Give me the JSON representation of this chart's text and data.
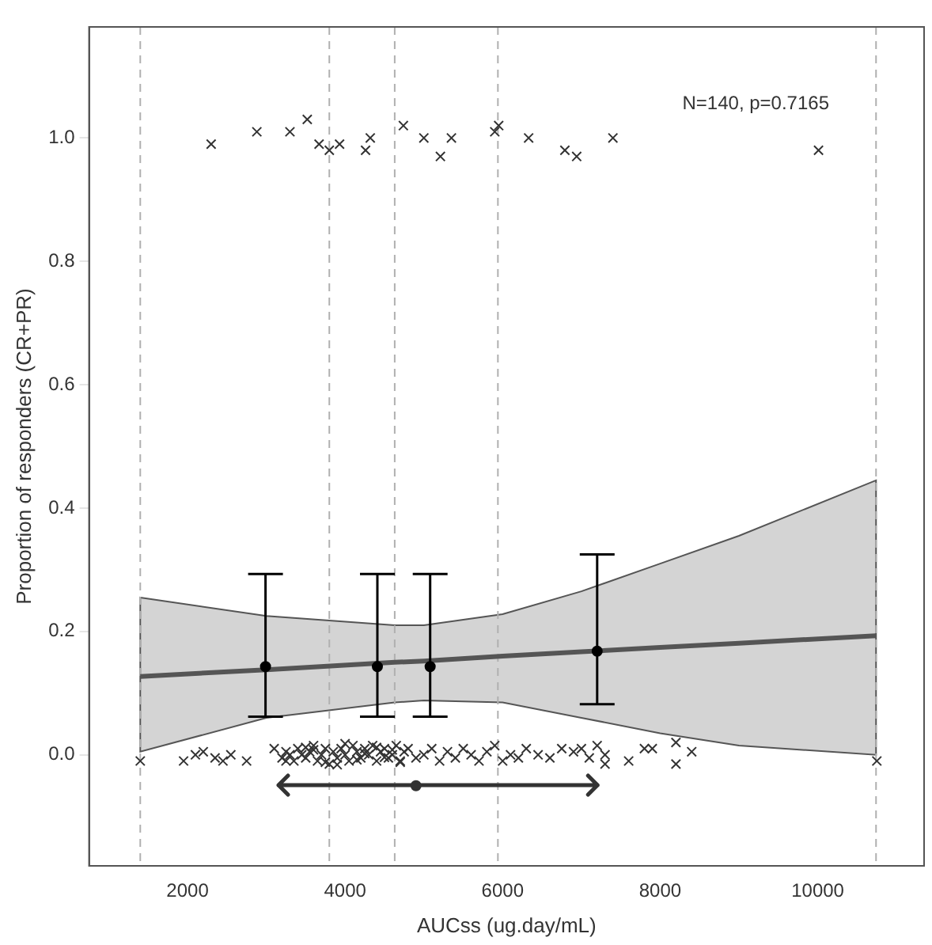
{
  "chart_data": {
    "type": "scatter",
    "xlabel": "AUCss (ug.day/mL)",
    "ylabel": "Proportion of responders (CR+PR)",
    "annotations": [
      "N=140, p=0.7165"
    ],
    "xlim": [
      750,
      11350
    ],
    "xticks": [
      2000,
      4000,
      6000,
      8000,
      10000
    ],
    "ylim": [
      -0.18,
      1.18
    ],
    "yticks": [
      {
        "value": 0,
        "label": "0.0"
      },
      {
        "value": 0.2,
        "label": "0.2"
      },
      {
        "value": 0.4,
        "label": "0.4"
      },
      {
        "value": 0.6,
        "label": "0.6"
      },
      {
        "value": 0.8,
        "label": "0.8"
      },
      {
        "value": 1,
        "label": "1.0"
      }
    ],
    "grid": false,
    "legend": false,
    "ref_lines": [
      {
        "axis": "x",
        "value": 1400,
        "color": "#b0b0b0",
        "line_style": "dashed"
      },
      {
        "axis": "x",
        "value": 3800,
        "color": "#b0b0b0",
        "line_style": "dashed"
      },
      {
        "axis": "x",
        "value": 4630,
        "color": "#b0b0b0",
        "line_style": "dashed"
      },
      {
        "axis": "x",
        "value": 5940,
        "color": "#b0b0b0",
        "line_style": "dashed"
      },
      {
        "axis": "x",
        "value": 10740,
        "color": "#b0b0b0",
        "line_style": "dashed"
      }
    ],
    "series": [
      {
        "type": "line",
        "color": "#555555",
        "marker": "none",
        "line_style": "solid",
        "x": [
          1400,
          3000,
          4630,
          5000,
          6000,
          7000,
          8000,
          9000,
          10740
        ],
        "values": [
          0.127,
          0.138,
          0.15,
          0.152,
          0.16,
          0.167,
          0.174,
          0.181,
          0.193
        ],
        "lower": [
          0.005,
          0.06,
          0.085,
          0.088,
          0.085,
          0.06,
          0.035,
          0.015,
          0.0
        ],
        "upper": [
          0.255,
          0.225,
          0.21,
          0.21,
          0.228,
          0.265,
          0.31,
          0.355,
          0.445
        ]
      },
      {
        "type": "scatter",
        "color": "#333333",
        "marker": "cross",
        "x": [
          2300,
          2880,
          3300,
          3520,
          3670,
          3800,
          3930,
          4260,
          4320,
          4740,
          5000,
          5210,
          5350,
          5900,
          5950,
          6330,
          6790,
          6940,
          7400,
          10010,
          1400,
          1950,
          2100,
          2200,
          2350,
          2450,
          2550,
          2750,
          3100,
          3200,
          3250,
          3300,
          3350,
          3400,
          3450,
          3500,
          3550,
          3600,
          3650,
          3700,
          3750,
          3800,
          3850,
          3900,
          3950,
          4000,
          4050,
          4100,
          4150,
          4200,
          4250,
          4300,
          4350,
          4400,
          4450,
          4500,
          4550,
          4600,
          4650,
          4700,
          4750,
          4800,
          4900,
          5000,
          5100,
          5200,
          5300,
          5400,
          5500,
          5600,
          5700,
          5800,
          5900,
          6000,
          6100,
          6200,
          6300,
          6450,
          6600,
          6750,
          6900,
          7000,
          7100,
          7200,
          7300,
          7300,
          7600,
          7800,
          7900,
          8200,
          8200,
          8400,
          10750,
          3250,
          3500,
          3750,
          4000,
          4150,
          4250,
          4400,
          4500,
          4600,
          4700,
          3600,
          3900
        ],
        "values": [
          0.99,
          1.01,
          1.01,
          1.03,
          0.99,
          0.98,
          0.99,
          0.98,
          1.0,
          1.02,
          1.0,
          0.97,
          1.0,
          1.01,
          1.02,
          1.0,
          0.98,
          0.97,
          1.0,
          0.98,
          -0.01,
          -0.01,
          0.0,
          0.005,
          -0.005,
          -0.01,
          0.0,
          -0.01,
          0.01,
          -0.005,
          0.005,
          0.0,
          -0.01,
          0.01,
          0.0,
          -0.005,
          0.005,
          0.015,
          -0.01,
          0.0,
          0.01,
          -0.015,
          0.005,
          -0.005,
          0.01,
          0.0,
          -0.01,
          0.015,
          0.005,
          -0.005,
          0.01,
          0.0,
          0.015,
          -0.01,
          0.005,
          0.01,
          -0.005,
          0.0,
          0.015,
          -0.01,
          0.005,
          0.01,
          -0.005,
          0.0,
          0.01,
          -0.01,
          0.005,
          -0.005,
          0.01,
          0.0,
          -0.01,
          0.005,
          0.015,
          -0.01,
          0.0,
          -0.005,
          0.01,
          0.0,
          -0.005,
          0.01,
          0.005,
          0.01,
          -0.005,
          0.015,
          -0.015,
          0.0,
          -0.01,
          0.01,
          0.01,
          0.02,
          -0.015,
          0.005,
          -0.01,
          -0.01,
          0.012,
          -0.012,
          0.018,
          -0.008,
          0.002,
          0.012,
          -0.004,
          0.008,
          -0.012,
          0.008,
          -0.016
        ]
      },
      {
        "type": "scatter",
        "color": "#000000",
        "marker": "circle",
        "x": [
          2990,
          4410,
          5080,
          7200
        ],
        "values": [
          0.143,
          0.143,
          0.143,
          0.168
        ],
        "errors": [
          [
            0.062,
            0.293
          ],
          [
            0.062,
            0.293
          ],
          [
            0.062,
            0.293
          ],
          [
            0.082,
            0.325
          ]
        ]
      },
      {
        "type": "scatter",
        "color": "#333333",
        "marker": "circle",
        "x": [
          4900
        ],
        "values": [
          -0.05
        ],
        "xerrors": [
          [
            3150,
            7200
          ]
        ]
      }
    ]
  }
}
